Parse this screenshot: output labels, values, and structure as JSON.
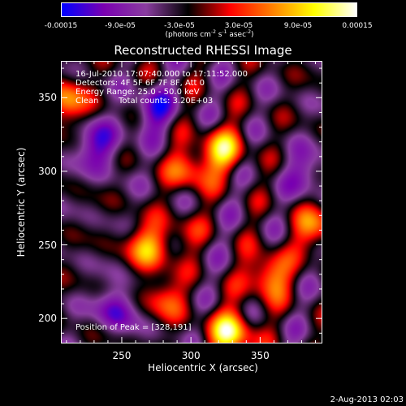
{
  "colors": {
    "colormap": [
      "#0000ff",
      "#7a00b0",
      "#8a3da0",
      "#000000",
      "#ff0000",
      "#ff8000",
      "#ffff00",
      "#ffffff"
    ],
    "background": "#000000",
    "text": "#ffffff"
  },
  "colorbar": {
    "tick_labels": [
      "-0.00015",
      "-9.0e-05",
      "-3.0e-05",
      "3.0e-05",
      "9.0e-05",
      "0.00015"
    ],
    "range": [
      -0.00015,
      0.00015
    ]
  },
  "info": {
    "line1": "16-Jul-2010 17:07:40.000 to 17:11:52.000",
    "line2": "Detectors: 4F 5F 6F 7F 8F, Att 0",
    "line3": "Energy Range: 25.0 - 50.0 keV",
    "line4_method": "Clean",
    "line4_counts": "Total counts: 3.20E+03",
    "peak": "Position of Peak = [328,191]"
  },
  "footer": {
    "date": "2-Aug-2013 02:03"
  },
  "chart_data": {
    "type": "heatmap",
    "title": "Reconstructed RHESSI Image",
    "xlabel": "Heliocentric X (arcsec)",
    "ylabel": "Heliocentric Y (arcsec)",
    "unit_label": "(photons cm^-2 s^-1 asec^-2)",
    "xlim": [
      206,
      395
    ],
    "ylim": [
      183,
      375
    ],
    "xticks": [
      250,
      300,
      350
    ],
    "yticks": [
      200,
      250,
      300,
      350
    ],
    "xtick_labels": [
      "250",
      "300",
      "350"
    ],
    "ytick_labels": [
      "200",
      "250",
      "300",
      "350"
    ],
    "value_range": [
      -0.00015,
      0.00015
    ],
    "peak_position": [
      328,
      191
    ],
    "bright_sources": [
      {
        "x": 328,
        "y": 191,
        "value": 0.00015
      },
      {
        "x": 355,
        "y": 230,
        "value": 0.00012
      },
      {
        "x": 322,
        "y": 315,
        "value": 0.00012
      },
      {
        "x": 268,
        "y": 250,
        "value": 0.00011
      },
      {
        "x": 295,
        "y": 258,
        "value": 0.0001
      },
      {
        "x": 210,
        "y": 348,
        "value": 0.0001
      },
      {
        "x": 388,
        "y": 262,
        "value": 9e-05
      },
      {
        "x": 298,
        "y": 302,
        "value": 9e-05
      },
      {
        "x": 280,
        "y": 215,
        "value": 8e-05
      }
    ],
    "dim_sources": [
      {
        "x": 232,
        "y": 318,
        "value": -9e-05
      },
      {
        "x": 272,
        "y": 342,
        "value": -8e-05
      },
      {
        "x": 246,
        "y": 208,
        "value": -8e-05
      },
      {
        "x": 296,
        "y": 258,
        "value": -6e-05
      },
      {
        "x": 382,
        "y": 300,
        "value": -6e-05
      }
    ]
  }
}
